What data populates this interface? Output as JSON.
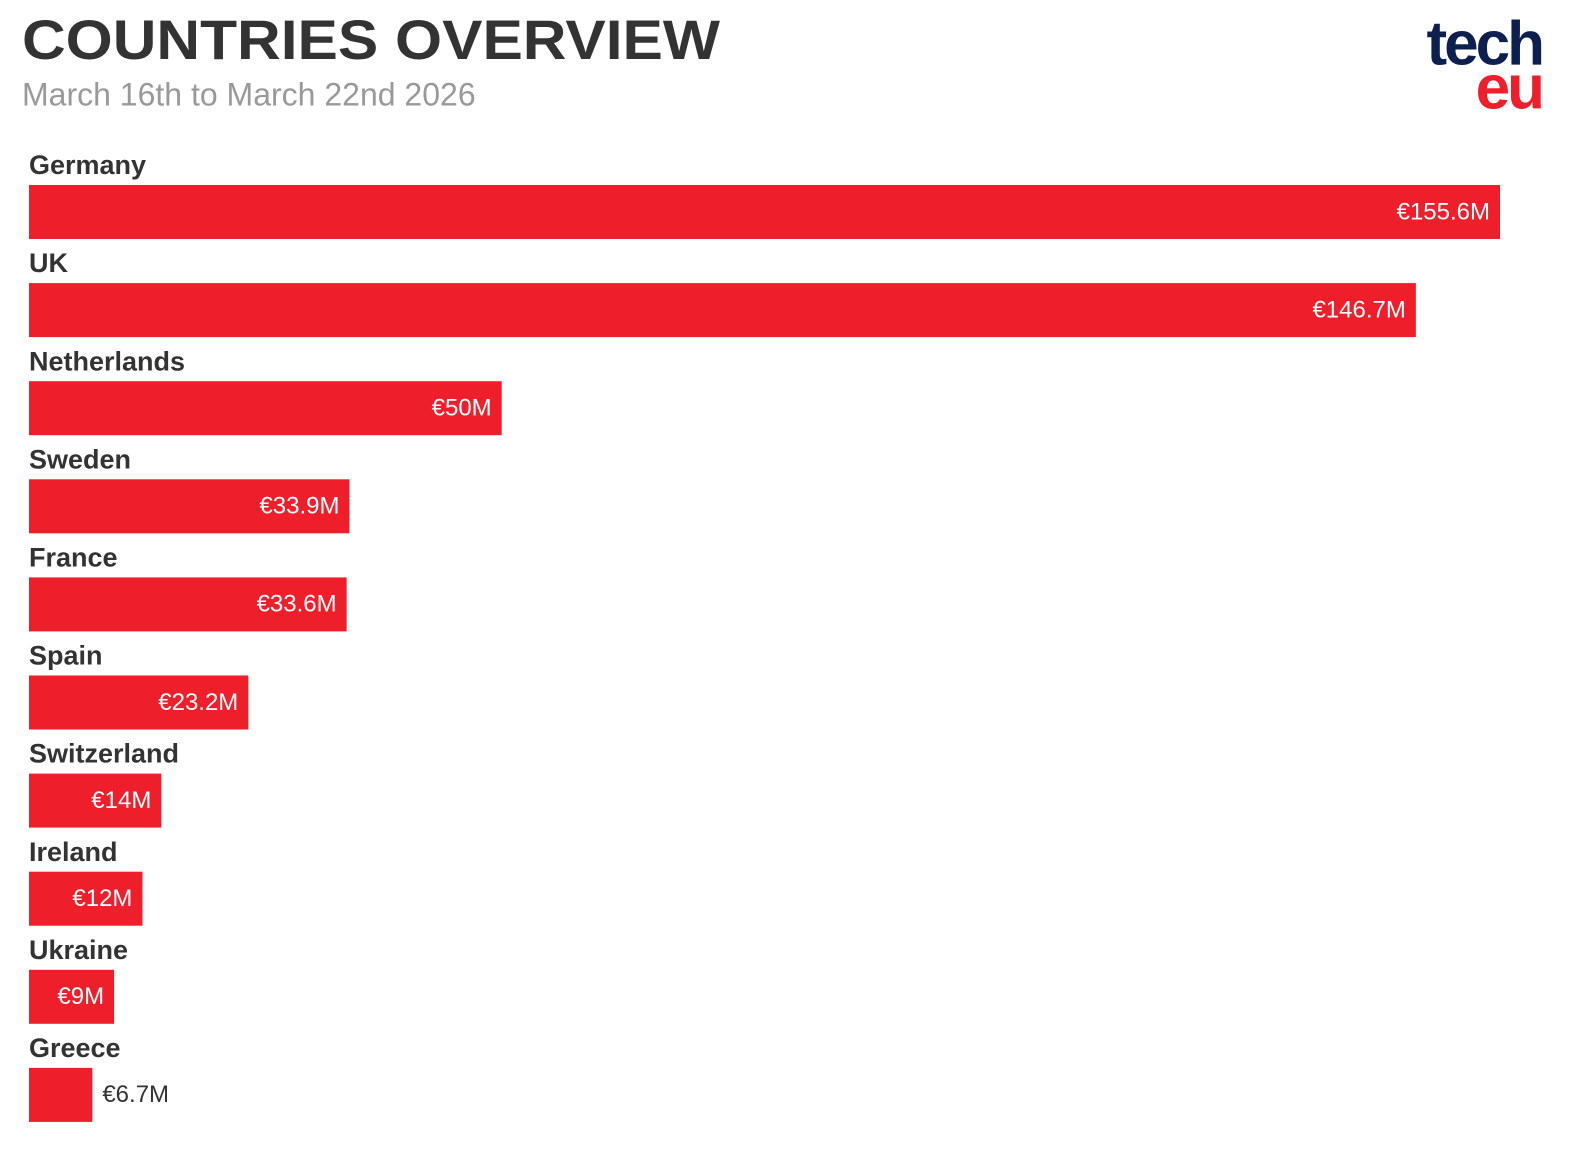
{
  "chart_data": {
    "type": "bar",
    "orientation": "horizontal",
    "title": "COUNTRIES OVERVIEW",
    "subtitle": "March 16th to March 22nd 2026",
    "logo": {
      "top": "tech",
      "bottom": "eu"
    },
    "categories": [
      "Germany",
      "UK",
      "Netherlands",
      "Sweden",
      "France",
      "Spain",
      "Switzerland",
      "Ireland",
      "Ukraine",
      "Greece"
    ],
    "values": [
      155.6,
      146.7,
      50,
      33.9,
      33.6,
      23.2,
      14,
      12,
      9,
      6.7
    ],
    "value_labels": [
      "€155.6M",
      "€146.7M",
      "€50M",
      "€33.9M",
      "€33.6M",
      "€23.2M",
      "€14M",
      "€12M",
      "€9M",
      "€6.7M"
    ],
    "color": "#ee1f2b"
  }
}
